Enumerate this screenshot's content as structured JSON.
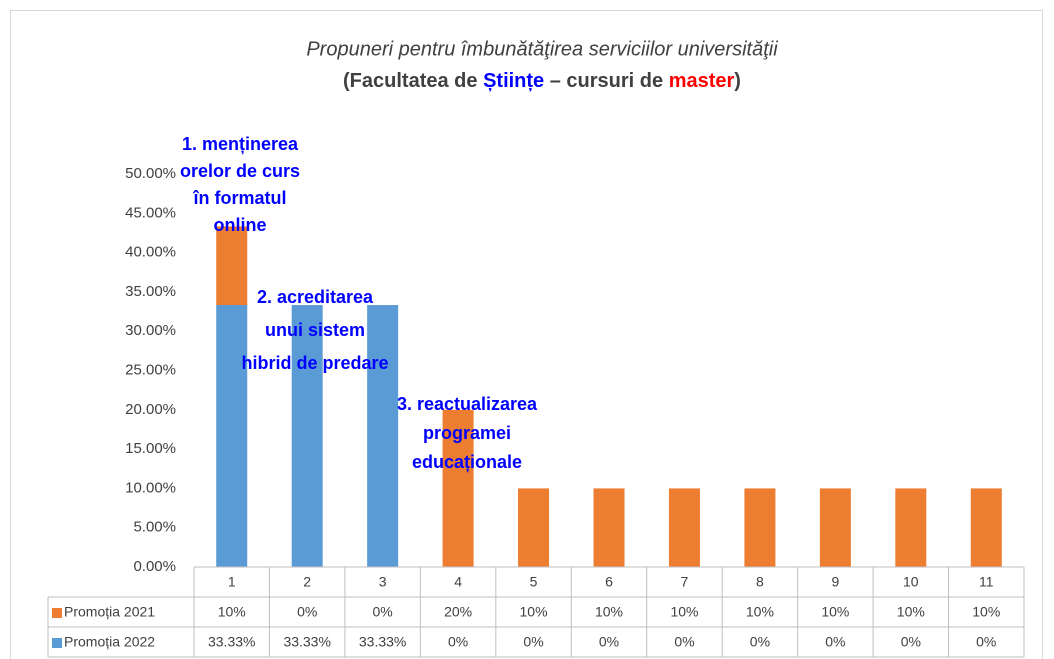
{
  "chart_data": {
    "type": "stacked_bar",
    "title": "Propuneri pentru îmbunătăţirea  serviciilor universităţii",
    "subtitle": [
      {
        "text": "(Facultatea de ",
        "color": "#404040"
      },
      {
        "text": "Științe",
        "color": "#0000ff"
      },
      {
        "text": " – cursuri de ",
        "color": "#404040"
      },
      {
        "text": "master",
        "color": "#ff0000"
      },
      {
        "text": ")",
        "color": "#404040"
      }
    ],
    "categories": [
      "1",
      "2",
      "3",
      "4",
      "5",
      "6",
      "7",
      "8",
      "9",
      "10",
      "11"
    ],
    "series": [
      {
        "name": "Promoția 2022",
        "color": "#5b9bd5",
        "values": [
          33.33,
          33.33,
          33.33,
          0,
          0,
          0,
          0,
          0,
          0,
          0,
          0
        ],
        "value_labels": [
          "33.33%",
          "33.33%",
          "33.33%",
          "0%",
          "0%",
          "0%",
          "0%",
          "0%",
          "0%",
          "0%",
          "0%"
        ]
      },
      {
        "name": "Promoția 2021",
        "color": "#ed7d31",
        "values": [
          10,
          0,
          0,
          20,
          10,
          10,
          10,
          10,
          10,
          10,
          10
        ],
        "value_labels": [
          "10%",
          "0%",
          "0%",
          "20%",
          "10%",
          "10%",
          "10%",
          "10%",
          "10%",
          "10%",
          "10%"
        ]
      }
    ],
    "ylim": [
      0,
      50
    ],
    "yticks": [
      {
        "value": 0,
        "label": "0.00%"
      },
      {
        "value": 5,
        "label": "5.00%"
      },
      {
        "value": 10,
        "label": "10.00%"
      },
      {
        "value": 15,
        "label": "15.00%"
      },
      {
        "value": 20,
        "label": "20.00%"
      },
      {
        "value": 25,
        "label": "25.00%"
      },
      {
        "value": 30,
        "label": "30.00%"
      },
      {
        "value": 35,
        "label": "35.00%"
      },
      {
        "value": 40,
        "label": "40.00%"
      },
      {
        "value": 45,
        "label": "45.00%"
      },
      {
        "value": 50,
        "label": "50.00%"
      }
    ],
    "grid": false,
    "annotations": [
      [
        "1. menținerea",
        "orelor de curs",
        "în formatul",
        "online"
      ],
      [
        "2. acreditarea",
        "unui sistem",
        "hibrid de predare"
      ],
      [
        "3. reactualizarea",
        "programei",
        "educaționale"
      ]
    ]
  }
}
